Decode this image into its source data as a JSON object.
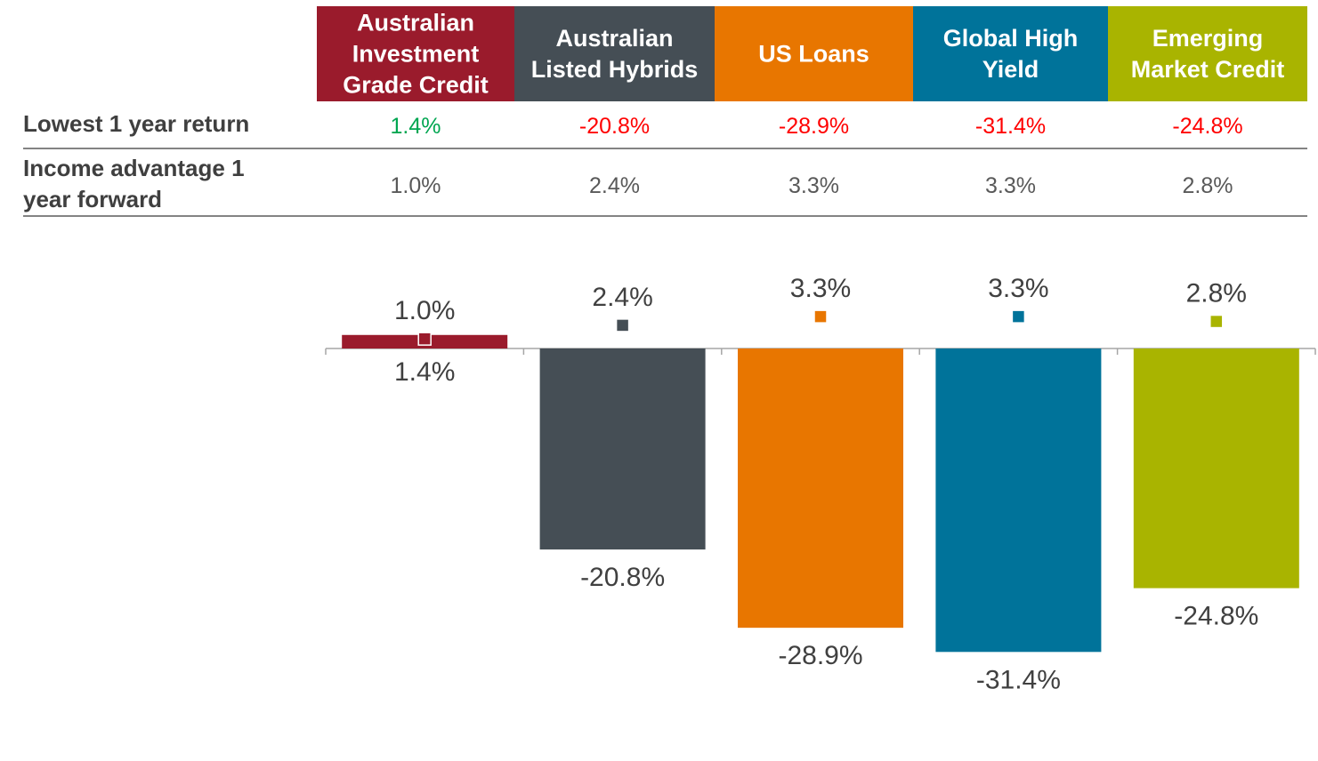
{
  "table": {
    "row_labels": {
      "lowest": [
        "Lowest 1 year return"
      ],
      "income": [
        "Income advantage 1",
        "year forward"
      ]
    }
  },
  "chart_data": {
    "type": "bar",
    "categories": [
      "Australian Investment Grade Credit",
      "Australian Listed Hybrids",
      "US Loans",
      "Global High Yield",
      "Emerging Market Credit"
    ],
    "header_lines": [
      [
        "Australian",
        "Investment",
        "Grade Credit"
      ],
      [
        "Australian",
        "Listed Hybrids"
      ],
      [
        "US Loans"
      ],
      [
        "Global High",
        "Yield"
      ],
      [
        "Emerging",
        "Market Credit"
      ]
    ],
    "colors": [
      "#9a1b2c",
      "#454e55",
      "#e87600",
      "#00739a",
      "#a9b400"
    ],
    "series": [
      {
        "name": "Lowest 1 year return",
        "values": [
          1.4,
          -20.8,
          -28.9,
          -31.4,
          -24.8
        ],
        "labels": [
          "1.4%",
          "-20.8%",
          "-28.9%",
          "-31.4%",
          "-24.8%"
        ],
        "text_colors": [
          "#00a651",
          "#ff0000",
          "#ff0000",
          "#ff0000",
          "#ff0000"
        ]
      },
      {
        "name": "Income advantage 1 year forward",
        "values": [
          1.0,
          2.4,
          3.3,
          3.3,
          2.8
        ],
        "labels": [
          "1.0%",
          "2.4%",
          "3.3%",
          "3.3%",
          "2.8%"
        ],
        "text_color": "#595959"
      }
    ],
    "ylim": [
      -35,
      10
    ],
    "grid": false,
    "axis_color": "#a6a6a6",
    "label_color": "#404040"
  }
}
